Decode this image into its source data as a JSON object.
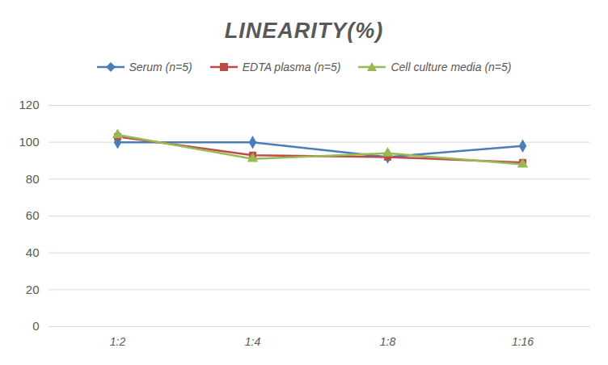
{
  "chart_data": {
    "type": "line",
    "title": "LINEARITY(%)",
    "categories": [
      "1:2",
      "1:4",
      "1:8",
      "1:16"
    ],
    "series": [
      {
        "name": "Serum (n=5)",
        "color": "#4a7ebb",
        "marker": "diamond",
        "values": [
          100,
          100,
          92,
          98
        ]
      },
      {
        "name": "EDTA plasma (n=5)",
        "color": "#be4b48",
        "marker": "square",
        "values": [
          103,
          93,
          92,
          89
        ]
      },
      {
        "name": "Cell culture media (n=5)",
        "color": "#98b954",
        "marker": "triangle",
        "values": [
          104,
          91,
          94,
          88
        ]
      }
    ],
    "ylim": [
      0,
      120
    ],
    "yticks": [
      0,
      20,
      40,
      60,
      80,
      100,
      120
    ],
    "grid": true,
    "legend": "top"
  }
}
